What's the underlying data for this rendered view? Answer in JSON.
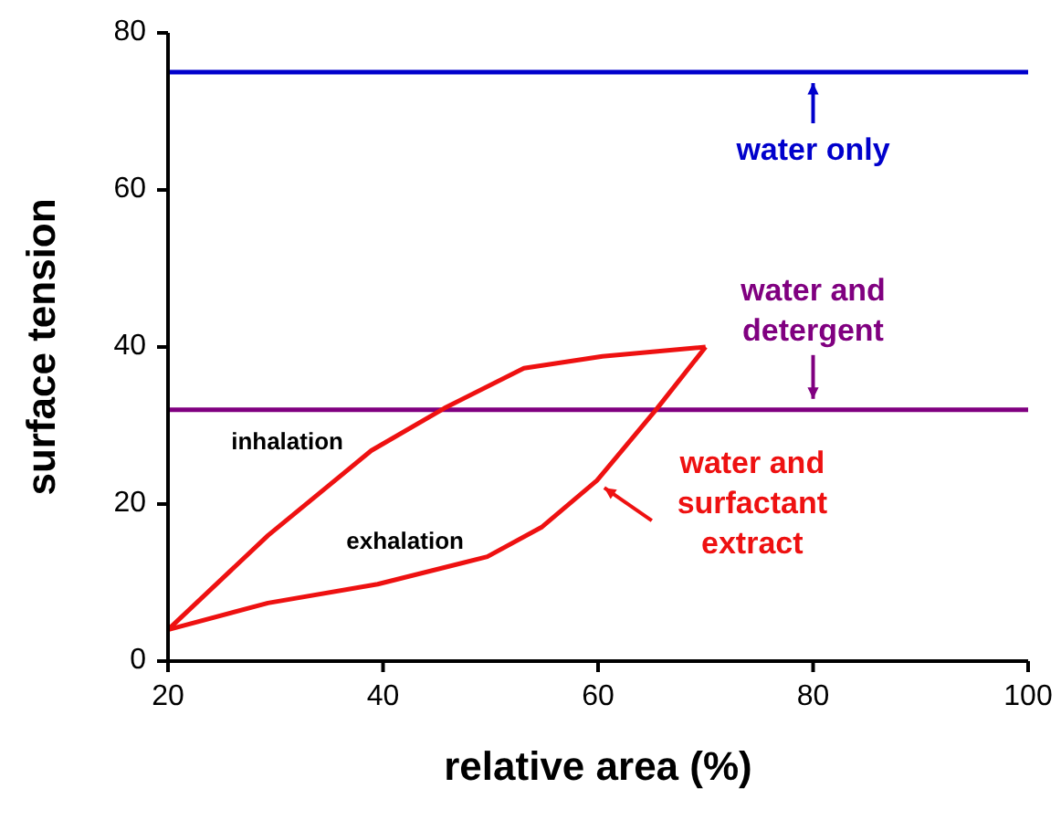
{
  "chart_data": {
    "type": "line",
    "xlabel": "relative area (%)",
    "ylabel": "surface tension",
    "xlim": [
      20,
      100
    ],
    "xticks": [
      20,
      40,
      60,
      80,
      100
    ],
    "ylim": [
      0,
      80
    ],
    "yticks": [
      0,
      20,
      40,
      60,
      80
    ],
    "grid": false,
    "marker": "none",
    "line_style": "solid",
    "series": [
      {
        "name": "inhalation",
        "color": "#ee1111",
        "x": [
          20,
          29.3,
          38.9,
          45.7,
          53.1,
          60.4,
          70
        ],
        "values": [
          4,
          16,
          26.8,
          32.2,
          37.3,
          38.8,
          40
        ]
      },
      {
        "name": "exhalation",
        "color": "#ee1111",
        "x": [
          20,
          29.3,
          39.5,
          49.7,
          54.8,
          59.9,
          65.5,
          70
        ],
        "values": [
          4,
          7.4,
          9.8,
          13.3,
          17.1,
          23,
          32.2,
          40
        ]
      }
    ],
    "ref_lines": [
      {
        "axis": "y",
        "value": 75,
        "label": "water only",
        "color": "#0000cc"
      },
      {
        "axis": "y",
        "value": 32,
        "label": "water and detergent",
        "color": "#800080"
      }
    ],
    "annotations": [
      {
        "text": "water and surfactant extract",
        "x": 59.9,
        "y": 23
      }
    ]
  }
}
